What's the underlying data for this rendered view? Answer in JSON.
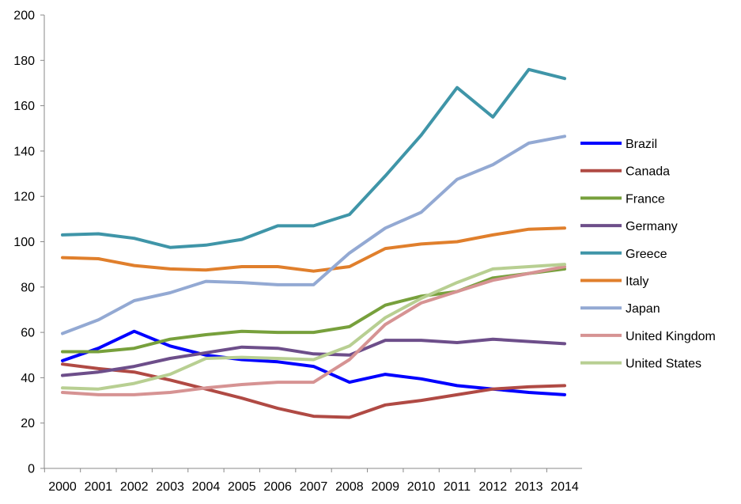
{
  "chart_data": {
    "type": "line",
    "title": "",
    "xlabel": "",
    "ylabel": "",
    "ylim": [
      0,
      200
    ],
    "y_ticks": [
      0,
      20,
      40,
      60,
      80,
      100,
      120,
      140,
      160,
      180,
      200
    ],
    "grid": false,
    "legend_position": "right",
    "x": [
      "2000",
      "2001",
      "2002",
      "2003",
      "2004",
      "2005",
      "2006",
      "2007",
      "2008",
      "2009",
      "2010",
      "2011",
      "2012",
      "2013",
      "2014"
    ],
    "series": [
      {
        "name": "Brazil",
        "color": "#0000ff",
        "values": [
          47.5,
          53,
          60.5,
          54,
          50,
          48,
          47,
          45,
          38,
          41.5,
          39.5,
          36.5,
          35,
          33.5,
          32.5
        ]
      },
      {
        "name": "Canada",
        "color": "#b04a44",
        "values": [
          46,
          44,
          42.5,
          39,
          35,
          31,
          26.5,
          23,
          22.5,
          28,
          30,
          32.5,
          35,
          36,
          36.5
        ]
      },
      {
        "name": "France",
        "color": "#77a03c",
        "values": [
          51.5,
          51.5,
          53,
          57,
          59,
          60.5,
          60,
          60,
          62.5,
          72,
          76,
          78,
          84,
          86,
          88
        ]
      },
      {
        "name": "Germany",
        "color": "#6d4e8a",
        "values": [
          41,
          42.5,
          45,
          48.5,
          51,
          53.5,
          53,
          50.5,
          50,
          56.5,
          56.5,
          55.5,
          57,
          56,
          55
        ]
      },
      {
        "name": "Greece",
        "color": "#3f95a8",
        "values": [
          103,
          103.5,
          101.5,
          97.5,
          98.5,
          101,
          107,
          107,
          112,
          129,
          147,
          168,
          155,
          176,
          172
        ]
      },
      {
        "name": "Italy",
        "color": "#e07f2c",
        "values": [
          93,
          92.5,
          89.5,
          88,
          87.5,
          89,
          89,
          87,
          89,
          97,
          99,
          100,
          103,
          105.5,
          106
        ]
      },
      {
        "name": "Japan",
        "color": "#93a9d3",
        "values": [
          59.5,
          65.5,
          74,
          77.5,
          82.5,
          82,
          81,
          81,
          95,
          106,
          113,
          127.5,
          134,
          143.5,
          146.5
        ]
      },
      {
        "name": "United Kingdom",
        "color": "#d69393",
        "values": [
          33.5,
          32.5,
          32.5,
          33.5,
          35.5,
          37,
          38,
          38,
          48,
          63.5,
          73,
          78,
          83,
          86,
          89
        ]
      },
      {
        "name": "United States",
        "color": "#b8cf92",
        "values": [
          35.5,
          35,
          37.5,
          41.5,
          48.5,
          49,
          48.5,
          48,
          54,
          66.5,
          75,
          82,
          88,
          89,
          90
        ]
      }
    ]
  }
}
